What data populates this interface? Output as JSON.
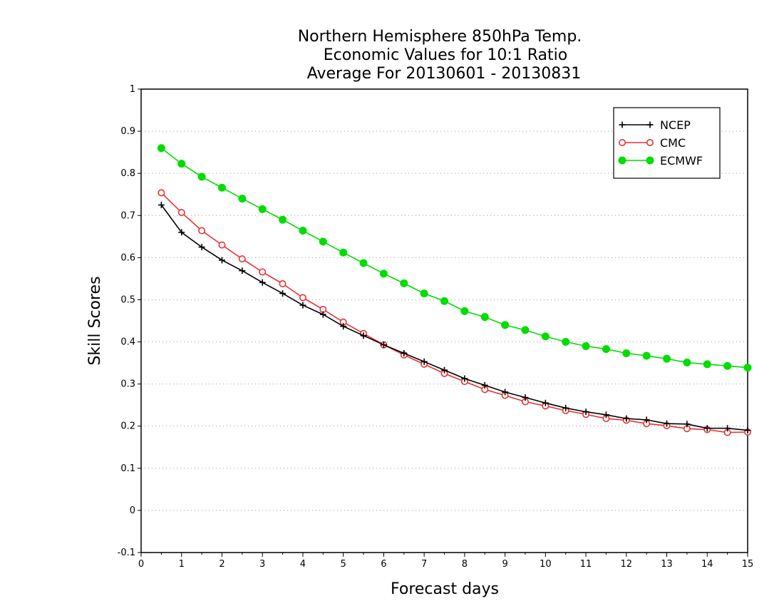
{
  "chart_data": {
    "type": "line",
    "title": [
      "Northern Hemisphere 850hPa Temp.",
      "Economic Values for 10:1 Ratio",
      "Average For 20130601 - 20130831"
    ],
    "xlabel": "Forecast days",
    "ylabel": "Skill Scores",
    "xlim": [
      0,
      15
    ],
    "ylim": [
      -0.1,
      1
    ],
    "x_ticks": [
      "0",
      "1",
      "2",
      "3",
      "4",
      "5",
      "6",
      "7",
      "8",
      "9",
      "10",
      "11",
      "12",
      "13",
      "14",
      "15"
    ],
    "y_ticks": [
      "-0.1",
      "0",
      "0.1",
      "0.2",
      "0.3",
      "0.4",
      "0.5",
      "0.6",
      "0.7",
      "0.8",
      "0.9",
      "1"
    ],
    "grid": "horizontal dotted",
    "legend_position": "top-right",
    "x": [
      0.5,
      1,
      1.5,
      2,
      2.5,
      3,
      3.5,
      4,
      4.5,
      5,
      5.5,
      6,
      6.5,
      7,
      7.5,
      8,
      8.5,
      9,
      9.5,
      10,
      10.5,
      11,
      11.5,
      12,
      12.5,
      13,
      13.5,
      14,
      14.5,
      15
    ],
    "series": [
      {
        "name": "NCEP",
        "color": "#000000",
        "marker": "plus",
        "values": [
          0.725,
          0.66,
          0.625,
          0.594,
          0.569,
          0.541,
          0.515,
          0.487,
          0.465,
          0.437,
          0.415,
          0.393,
          0.373,
          0.353,
          0.333,
          0.313,
          0.297,
          0.281,
          0.268,
          0.255,
          0.243,
          0.234,
          0.227,
          0.218,
          0.215,
          0.206,
          0.205,
          0.195,
          0.195,
          0.19
        ]
      },
      {
        "name": "CMC",
        "color": "#e83030",
        "marker": "open-circle",
        "values": [
          0.754,
          0.707,
          0.664,
          0.63,
          0.597,
          0.566,
          0.538,
          0.505,
          0.477,
          0.447,
          0.42,
          0.393,
          0.369,
          0.347,
          0.325,
          0.306,
          0.287,
          0.273,
          0.258,
          0.248,
          0.237,
          0.228,
          0.218,
          0.214,
          0.206,
          0.201,
          0.194,
          0.192,
          0.185,
          0.186
        ]
      },
      {
        "name": "ECMWF",
        "color": "#00dd00",
        "marker": "filled-circle",
        "values": [
          0.86,
          0.823,
          0.792,
          0.766,
          0.74,
          0.715,
          0.69,
          0.664,
          0.638,
          0.612,
          0.587,
          0.562,
          0.539,
          0.515,
          0.497,
          0.473,
          0.459,
          0.44,
          0.428,
          0.413,
          0.4,
          0.39,
          0.383,
          0.373,
          0.367,
          0.36,
          0.351,
          0.347,
          0.343,
          0.339
        ]
      }
    ]
  }
}
